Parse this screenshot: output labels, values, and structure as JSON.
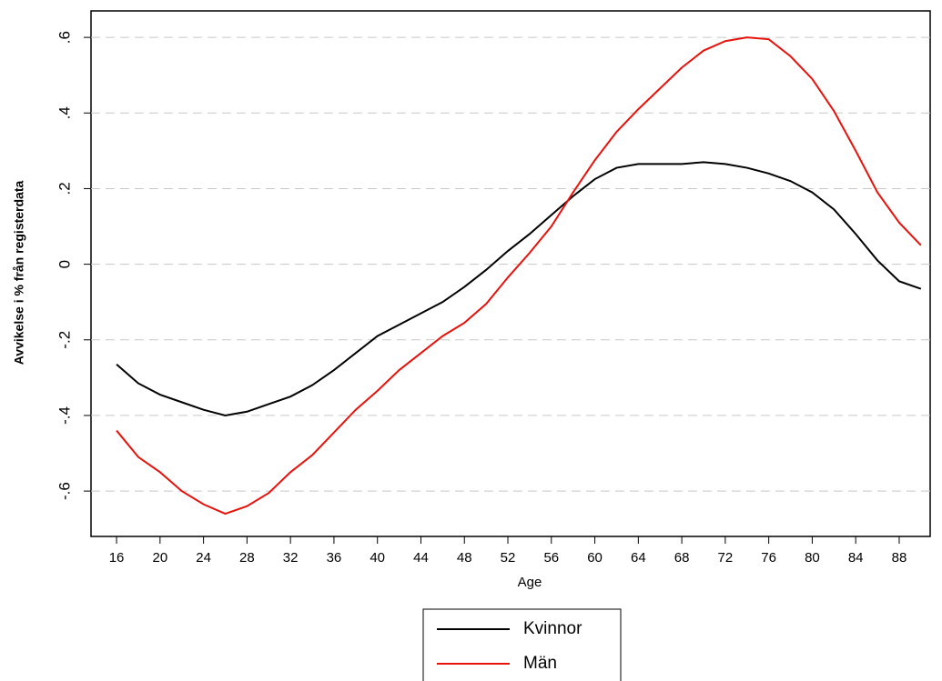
{
  "chart_data": {
    "type": "line",
    "x_label": "Age",
    "y_label": "Avvikelse i % från registerdata",
    "x": [
      16,
      18,
      20,
      22,
      24,
      26,
      28,
      30,
      32,
      34,
      36,
      38,
      40,
      42,
      44,
      46,
      48,
      50,
      52,
      54,
      56,
      58,
      60,
      62,
      64,
      66,
      68,
      70,
      72,
      74,
      76,
      78,
      80,
      82,
      84,
      86,
      88,
      90
    ],
    "series": [
      {
        "name": "Kvinnor",
        "color": "#000000",
        "values": [
          -0.265,
          -0.315,
          -0.345,
          -0.365,
          -0.385,
          -0.4,
          -0.39,
          -0.37,
          -0.35,
          -0.32,
          -0.28,
          -0.235,
          -0.19,
          -0.16,
          -0.13,
          -0.1,
          -0.06,
          -0.015,
          0.035,
          0.08,
          0.13,
          0.18,
          0.225,
          0.255,
          0.265,
          0.265,
          0.265,
          0.27,
          0.265,
          0.255,
          0.24,
          0.22,
          0.19,
          0.145,
          0.08,
          0.01,
          -0.045,
          -0.065
        ]
      },
      {
        "name": "Män",
        "color": "#e8120c",
        "values": [
          -0.44,
          -0.51,
          -0.55,
          -0.6,
          -0.635,
          -0.66,
          -0.64,
          -0.605,
          -0.55,
          -0.505,
          -0.445,
          -0.385,
          -0.335,
          -0.28,
          -0.235,
          -0.19,
          -0.155,
          -0.105,
          -0.035,
          0.03,
          0.1,
          0.19,
          0.275,
          0.35,
          0.41,
          0.465,
          0.52,
          0.565,
          0.59,
          0.6,
          0.595,
          0.55,
          0.49,
          0.405,
          0.3,
          0.19,
          0.11,
          0.05
        ]
      }
    ],
    "xlim": [
      13.65,
      90.85
    ],
    "ylim": [
      -0.72,
      0.67
    ],
    "xticks": [
      16,
      20,
      24,
      28,
      32,
      36,
      40,
      44,
      48,
      52,
      56,
      60,
      64,
      68,
      72,
      76,
      80,
      84,
      88
    ],
    "yticks": [
      {
        "value": 0.6,
        "label": ".6"
      },
      {
        "value": 0.4,
        "label": ".4"
      },
      {
        "value": 0.2,
        "label": ".2"
      },
      0,
      {
        "value": -0.2,
        "label": "-.2"
      },
      {
        "value": -0.4,
        "label": "-.4"
      },
      {
        "value": -0.6,
        "label": "-.6"
      }
    ],
    "grid": true,
    "legend": "bottom"
  }
}
